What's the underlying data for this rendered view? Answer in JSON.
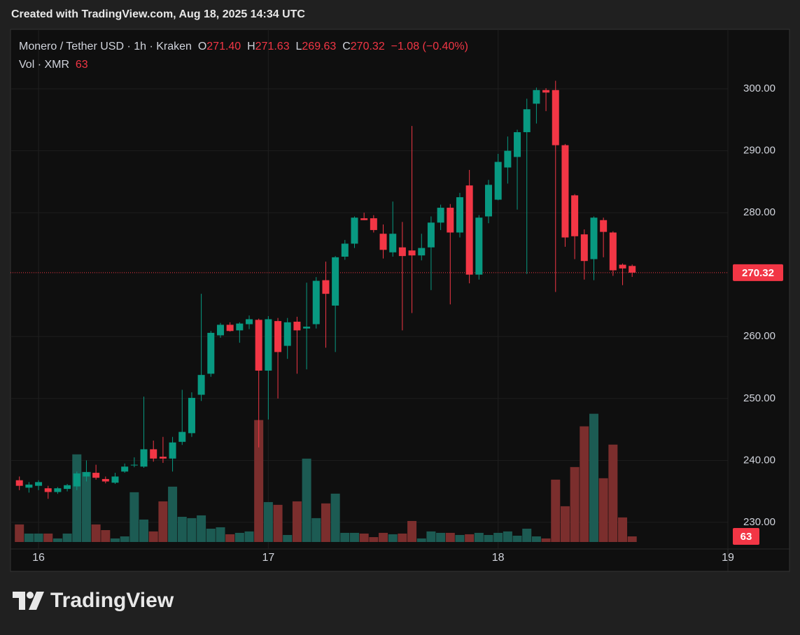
{
  "header": {
    "created": "Created with TradingView.com, Aug 18, 2025 14:34 UTC"
  },
  "legend": {
    "symbol": "Monero / Tether USD · 1h · Kraken",
    "o_label": "O",
    "open": "271.40",
    "h_label": "H",
    "high": "271.63",
    "l_label": "L",
    "low": "269.63",
    "c_label": "C",
    "close": "270.32",
    "change": "−1.08 (−0.40%)",
    "vol_label": "Vol · XMR"
  },
  "footer": {
    "brand": "TradingView"
  },
  "chart_data": {
    "type": "candlestick",
    "x": [
      15.9167,
      15.9583,
      16.0,
      16.0417,
      16.0833,
      16.125,
      16.1667,
      16.2083,
      16.25,
      16.2917,
      16.3333,
      16.375,
      16.4167,
      16.4583,
      16.5,
      16.5417,
      16.5833,
      16.625,
      16.6667,
      16.7083,
      16.75,
      16.7917,
      16.8333,
      16.875,
      16.9167,
      16.9583,
      17.0,
      17.0417,
      17.0833,
      17.125,
      17.1667,
      17.2083,
      17.25,
      17.2917,
      17.3333,
      17.375,
      17.4167,
      17.4583,
      17.5,
      17.5417,
      17.5833,
      17.625,
      17.6667,
      17.7083,
      17.75,
      17.7917,
      17.8333,
      17.875,
      17.9167,
      17.9583,
      18.0,
      18.0417,
      18.0833,
      18.125,
      18.1667,
      18.2083,
      18.25,
      18.2917,
      18.3333,
      18.375,
      18.4167,
      18.4583,
      18.5,
      18.5417,
      18.5833
    ],
    "open": [
      236.8,
      235.6,
      235.9,
      235.5,
      234.9,
      235.4,
      235.8,
      237.4,
      238.0,
      237.0,
      236.4,
      238.2,
      239.2,
      239.0,
      241.8,
      240.6,
      240.3,
      243.0,
      244.4,
      250.6,
      254.0,
      260.2,
      261.9,
      261.0,
      262.0,
      262.7,
      254.5,
      262.5,
      258.5,
      262.4,
      261.3,
      262.0,
      269.1,
      265.0,
      272.9,
      275.0,
      279.1,
      279.1,
      276.6,
      273.6,
      274.4,
      273.9,
      273.1,
      274.4,
      278.4,
      280.8,
      276.8,
      284.4,
      270.0,
      279.4,
      282.1,
      287.3,
      289.0,
      293.0,
      297.6,
      299.8,
      299.8,
      290.9,
      282.8,
      276.5,
      272.5,
      278.8,
      276.8,
      271.6,
      271.4
    ],
    "high": [
      237.4,
      236.5,
      236.8,
      235.9,
      235.7,
      236.2,
      238.2,
      240.0,
      239.3,
      237.4,
      238.0,
      239.5,
      240.5,
      250.3,
      243.2,
      243.8,
      243.8,
      251.4,
      251.0,
      266.9,
      260.9,
      262.2,
      262.3,
      262.3,
      263.4,
      262.9,
      263.3,
      263.0,
      263.0,
      263.2,
      268.7,
      269.6,
      272.1,
      273.0,
      275.6,
      279.4,
      280.0,
      279.6,
      278.1,
      281.8,
      278.5,
      294.0,
      276.6,
      279.4,
      281.3,
      281.4,
      283.2,
      286.9,
      279.6,
      285.3,
      289.5,
      292.3,
      293.4,
      298.4,
      300.2,
      300.1,
      301.3,
      291.1,
      283.0,
      277.3,
      279.4,
      279.2,
      277.0,
      271.8,
      271.63
    ],
    "low": [
      235.2,
      234.8,
      235.2,
      233.8,
      234.6,
      235.0,
      235.2,
      236.6,
      236.9,
      236.3,
      236.2,
      238.0,
      238.9,
      238.8,
      239.8,
      239.6,
      238.2,
      242.5,
      243.8,
      249.6,
      253.5,
      259.8,
      260.8,
      259.0,
      261.2,
      242.1,
      246.6,
      250.0,
      256.4,
      254.0,
      254.7,
      261.3,
      258.2,
      257.5,
      272.4,
      274.3,
      278.8,
      276.8,
      272.6,
      272.9,
      261.0,
      263.8,
      272.3,
      267.5,
      277.2,
      265.2,
      276.0,
      268.6,
      269.2,
      278.3,
      282.0,
      284.7,
      280.5,
      270.1,
      294.4,
      296.4,
      267.2,
      274.5,
      272.5,
      269.2,
      269.1,
      272.8,
      269.8,
      268.3,
      269.63
    ],
    "close": [
      235.9,
      236.1,
      236.5,
      234.9,
      235.5,
      236.0,
      237.9,
      238.1,
      237.2,
      236.6,
      237.4,
      239.0,
      239.3,
      241.8,
      240.3,
      240.3,
      242.9,
      244.6,
      250.1,
      253.8,
      260.6,
      261.9,
      260.9,
      262.1,
      262.8,
      254.5,
      262.8,
      257.5,
      262.3,
      261.0,
      261.6,
      269.0,
      266.9,
      272.8,
      275.0,
      279.2,
      278.8,
      277.2,
      274.0,
      276.6,
      273.0,
      273.1,
      274.3,
      278.4,
      280.8,
      276.8,
      282.5,
      270.0,
      279.2,
      284.5,
      288.2,
      290.0,
      293.0,
      296.7,
      299.8,
      299.4,
      290.9,
      276.0,
      276.2,
      272.2,
      279.2,
      276.9,
      270.7,
      271.0,
      270.32
    ],
    "volume": [
      198,
      95,
      95,
      95,
      40,
      95,
      988,
      790,
      198,
      134,
      40,
      63,
      561,
      253,
      119,
      458,
      624,
      284,
      269,
      300,
      150,
      166,
      87,
      103,
      119,
      1375,
      450,
      419,
      79,
      458,
      940,
      269,
      435,
      545,
      103,
      103,
      95,
      55,
      103,
      87,
      95,
      237,
      40,
      119,
      103,
      103,
      79,
      87,
      103,
      79,
      103,
      119,
      71,
      150,
      63,
      40,
      703,
      403,
      845,
      1304,
      1446,
      719,
      1098,
      277,
      63
    ],
    "xlim": [
      15.878,
      19.0
    ],
    "xticks": [
      16,
      17,
      18,
      19
    ],
    "ylim": [
      225.7,
      309.6
    ],
    "yticks": [
      {
        "value": 230,
        "label": "230.00"
      },
      {
        "value": 240,
        "label": "240.00"
      },
      {
        "value": 250,
        "label": "250.00"
      },
      {
        "value": 260,
        "label": "260.00"
      },
      {
        "value": 280,
        "label": "280.00"
      },
      {
        "value": 290,
        "label": "290.00"
      },
      {
        "value": 300,
        "label": "300.00"
      }
    ],
    "volume_lim": [
      0,
      5780
    ],
    "grid": true,
    "up_color": "#089981",
    "down_color": "#f23645",
    "volume_up_color": "#1c5b53",
    "volume_down_color": "#7b2e2d"
  }
}
